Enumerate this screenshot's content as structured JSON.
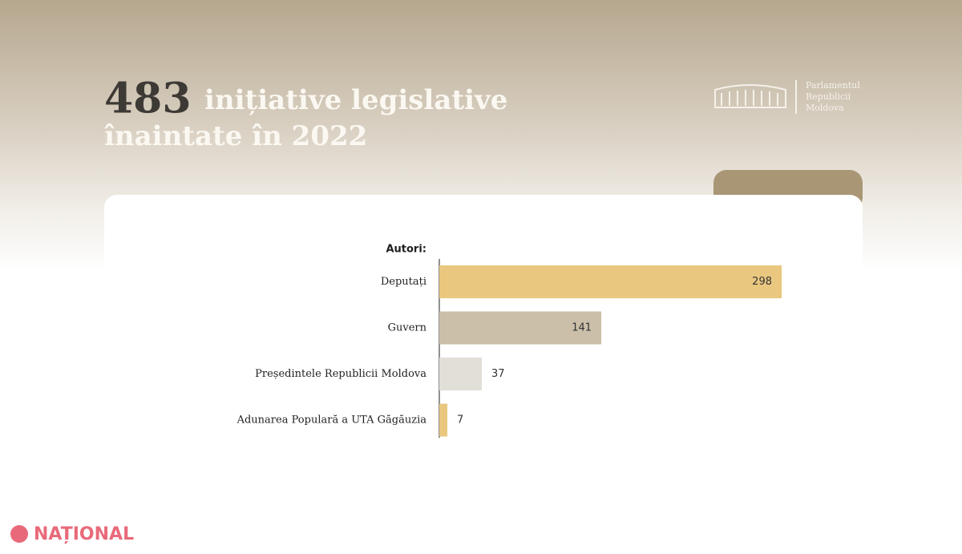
{
  "header": {
    "count": "483",
    "title_line1": "inițiative legislative",
    "title_line2": "înaintate în 2022",
    "logo": [
      "Parlamentul",
      "Republicii",
      "Moldova"
    ]
  },
  "chart_data": {
    "type": "bar",
    "orientation": "horizontal",
    "axis_title": "Autori:",
    "categories": [
      "Deputați",
      "Guvern",
      "Președintele Republicii Moldova",
      "Adunarea Populară a UTA Găgăuzia"
    ],
    "values": [
      298,
      141,
      37,
      7
    ],
    "colors": [
      "#e9c77f",
      "#cbbfa9",
      "#e2ded8",
      "#e9c77f"
    ]
  },
  "watermark": "NAȚIONAL"
}
